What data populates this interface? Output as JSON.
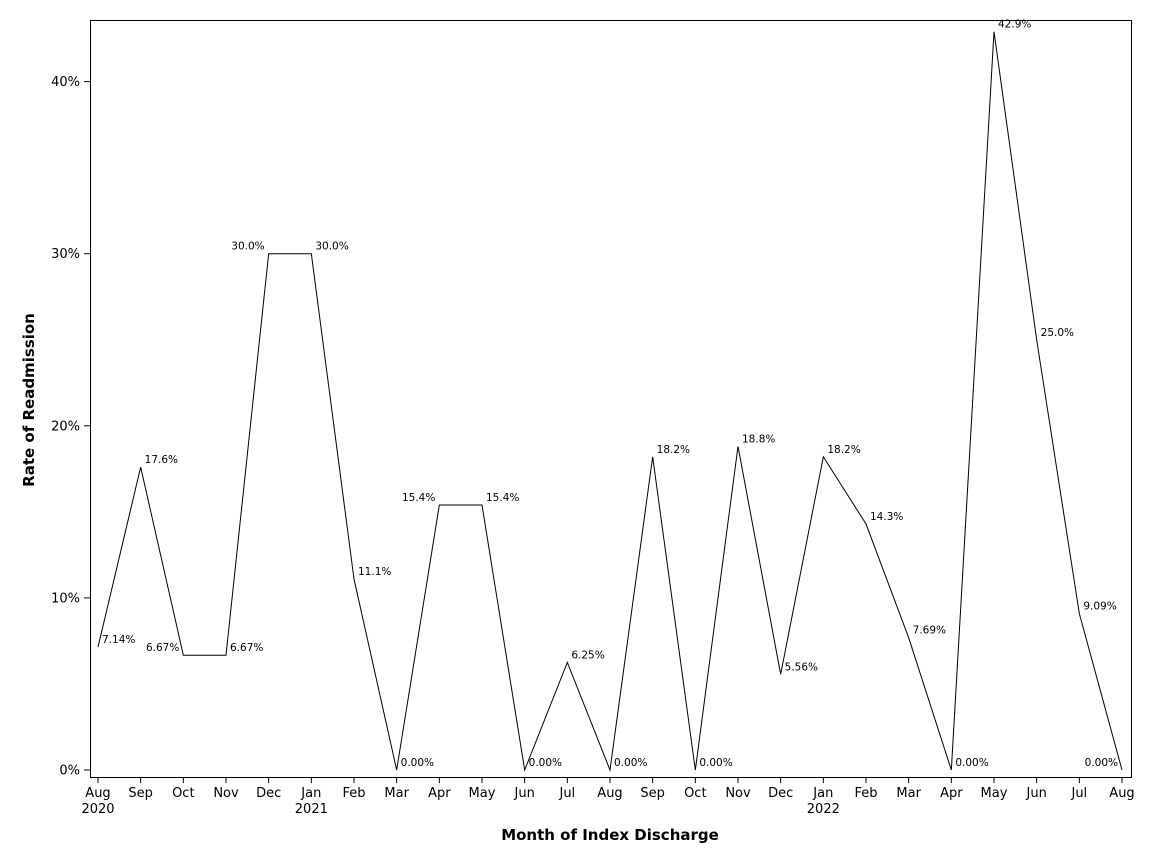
{
  "chart_data": {
    "type": "line",
    "title": "",
    "xlabel": "Month of Index Discharge",
    "ylabel": "Rate of Readmission",
    "ylim": [
      0,
      43
    ],
    "yticks": [
      0,
      10,
      20,
      30,
      40
    ],
    "ytick_labels": [
      "0%",
      "10%",
      "20%",
      "30%",
      "40%"
    ],
    "grid": false,
    "legend": "none",
    "line_color": "#000000",
    "x_tick_labels": [
      "Aug",
      "Sep",
      "Oct",
      "Nov",
      "Dec",
      "Jan",
      "Feb",
      "Mar",
      "Apr",
      "May",
      "Jun",
      "Jul",
      "Aug",
      "Sep",
      "Oct",
      "Nov",
      "Dec",
      "Jan",
      "Feb",
      "Mar",
      "Apr",
      "May",
      "Jun",
      "Jul",
      "Aug"
    ],
    "year_labels": [
      {
        "index": 0,
        "label": "2020"
      },
      {
        "index": 5,
        "label": "2021"
      },
      {
        "index": 17,
        "label": "2022"
      }
    ],
    "series": [
      {
        "x": [
          "2020-08",
          "2020-09",
          "2020-10",
          "2020-11",
          "2020-12",
          "2021-01",
          "2021-02",
          "2021-03",
          "2021-04",
          "2021-05",
          "2021-06",
          "2021-07",
          "2021-08",
          "2021-09",
          "2021-10",
          "2021-11",
          "2021-12",
          "2022-01",
          "2022-02",
          "2022-03",
          "2022-04",
          "2022-05",
          "2022-06",
          "2022-07",
          "2022-08"
        ],
        "values": [
          7.14,
          17.6,
          6.67,
          6.67,
          30.0,
          30.0,
          11.1,
          0.0,
          15.4,
          15.4,
          0.0,
          6.25,
          0.0,
          18.2,
          0.0,
          18.8,
          5.56,
          18.2,
          14.3,
          7.69,
          0.0,
          42.9,
          25.0,
          9.09,
          0.0
        ],
        "labels": [
          "7.14%",
          "17.6%",
          "6.67%",
          "6.67%",
          "30.0%",
          "30.0%",
          "11.1%",
          "0.00%",
          "15.4%",
          "15.4%",
          "0.00%",
          "6.25%",
          "0.00%",
          "18.2%",
          "0.00%",
          "18.8%",
          "5.56%",
          "18.2%",
          "14.3%",
          "7.69%",
          "0.00%",
          "42.9%",
          "25.0%",
          "9.09%",
          "0.00%"
        ]
      }
    ]
  }
}
